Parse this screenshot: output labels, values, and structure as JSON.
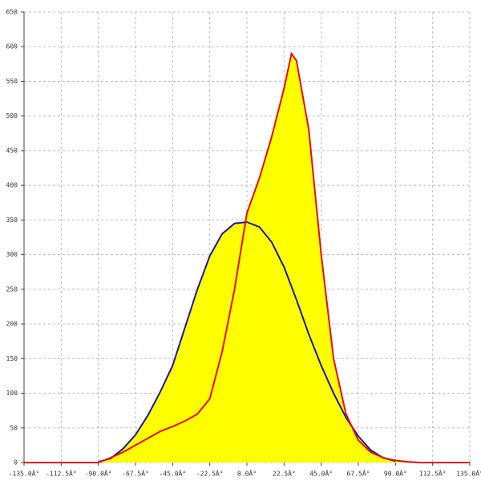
{
  "chart_data": {
    "type": "area",
    "fill": "#ffff00",
    "grid": true,
    "xlim": [
      -135,
      135
    ],
    "ylim": [
      0,
      650
    ],
    "xticks": [
      {
        "value": -135,
        "label": "-135.0Â°"
      },
      {
        "value": -112.5,
        "label": "-112.5Â°"
      },
      {
        "value": -90,
        "label": "-90.0Â°"
      },
      {
        "value": -67.5,
        "label": "-67.5Â°"
      },
      {
        "value": -45,
        "label": "-45.0Â°"
      },
      {
        "value": -22.5,
        "label": "-22.5Â°"
      },
      {
        "value": 0,
        "label": "0.0Â°"
      },
      {
        "value": 22.5,
        "label": "22.5Â°"
      },
      {
        "value": 45,
        "label": "45.0Â°"
      },
      {
        "value": 67.5,
        "label": "67.5Â°"
      },
      {
        "value": 90,
        "label": "90.0Â°"
      },
      {
        "value": 112.5,
        "label": "112.5Â°"
      },
      {
        "value": 135,
        "label": "135.0Â°"
      }
    ],
    "yticks": [
      0,
      50,
      100,
      150,
      200,
      250,
      300,
      350,
      400,
      450,
      500,
      550,
      600,
      650
    ],
    "series": [
      {
        "color": "#1a1aa0",
        "x": [
          -90,
          -82.5,
          -75,
          -67.5,
          -60,
          -52.5,
          -45,
          -37.5,
          -30,
          -22.5,
          -15,
          -7.5,
          0,
          7.5,
          15,
          22.5,
          30,
          37.5,
          45,
          52.5,
          60,
          67.5,
          75,
          82.5,
          90
        ],
        "values": [
          1,
          6,
          20,
          40,
          68,
          102,
          140,
          195,
          250,
          298,
          330,
          345,
          347,
          340,
          318,
          282,
          235,
          185,
          140,
          100,
          65,
          38,
          18,
          7,
          2
        ]
      },
      {
        "color": "#e01010",
        "x": [
          -135,
          -90,
          -82.5,
          -75,
          -67.5,
          -60,
          -52.5,
          -45,
          -37.5,
          -30,
          -22.5,
          -15,
          -7.5,
          0,
          7.5,
          15,
          22.5,
          27,
          30,
          37.5,
          45,
          52.5,
          60,
          67.5,
          75,
          82.5,
          90,
          97.5,
          105,
          135
        ],
        "values": [
          0,
          0,
          7,
          15,
          25,
          35,
          45,
          52,
          60,
          70,
          92,
          160,
          250,
          360,
          410,
          470,
          540,
          590,
          580,
          480,
          300,
          150,
          70,
          32,
          15,
          7,
          3,
          1,
          0,
          0
        ]
      }
    ]
  }
}
